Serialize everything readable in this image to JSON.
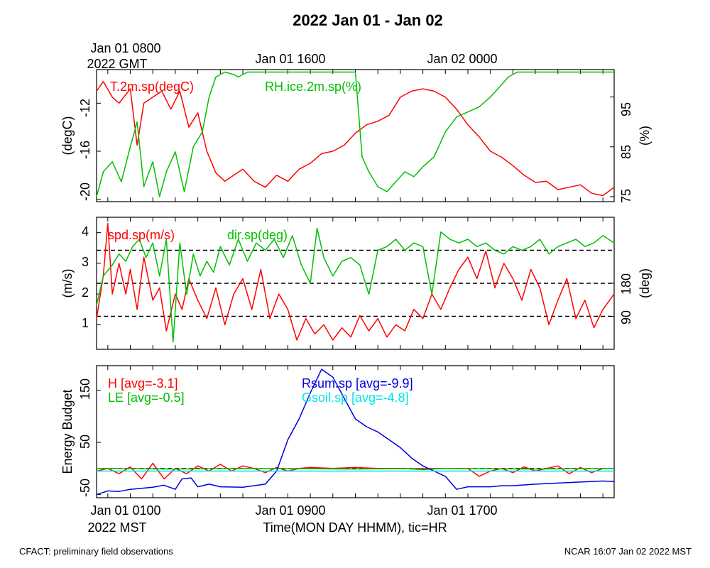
{
  "title": "2022 Jan 01 - Jan 02",
  "top_axis": {
    "first_label_line1": "Jan 01 0800",
    "first_label_line2": "2022 GMT",
    "labels": [
      "Jan 01 1600",
      "Jan 02 0000"
    ]
  },
  "bottom_axis": {
    "labels": [
      "Jan 01 0100",
      "Jan 01 0900",
      "Jan 01 1700"
    ],
    "tz_label": "2022 MST",
    "xlabel": "Time(MON DAY HHMM), tic=HR"
  },
  "footer": {
    "left": "CFACT: preliminary field observations",
    "right": "NCAR 16:07 Jan 02 2022 MST"
  },
  "colors": {
    "red": "#ff0000",
    "green": "#00c000",
    "blue": "#0000e0",
    "cyan": "#00e5e5",
    "black": "#000000"
  },
  "chart_data": [
    {
      "type": "line",
      "x_units": "hours since Jan 01 0000 MST",
      "xlim": [
        0.5,
        23.5
      ],
      "ylabel_left": "(degC)",
      "ylabel_right": "(%)",
      "ylim_left": [
        -20.2,
        -9.2
      ],
      "ylim_right": [
        74,
        100.5
      ],
      "yticks_left": [
        "-20",
        "-16",
        "-12"
      ],
      "yticks_right": [
        "75",
        "85",
        "95"
      ],
      "series": [
        {
          "name": "T.2m.sp(degC)",
          "axis": "left",
          "color": "red",
          "x": [
            0.5,
            0.8,
            1.2,
            1.5,
            2.0,
            2.3,
            2.6,
            3.0,
            3.4,
            3.8,
            4.2,
            4.6,
            5.0,
            5.4,
            5.8,
            6.2,
            6.6,
            7.0,
            7.5,
            8.0,
            8.5,
            9.0,
            9.5,
            10.0,
            10.5,
            11.0,
            11.5,
            12.0,
            12.5,
            13.0,
            13.5,
            14.0,
            14.5,
            15.0,
            15.5,
            16.0,
            16.5,
            17.0,
            17.5,
            18.0,
            18.5,
            19.0,
            19.5,
            20.0,
            20.5,
            21.0,
            21.5,
            22.0,
            22.5,
            23.0,
            23.5
          ],
          "y": [
            -11.0,
            -10.2,
            -11.5,
            -12.0,
            -10.8,
            -15.5,
            -12.0,
            -11.5,
            -11.0,
            -12.5,
            -11.0,
            -14.0,
            -12.8,
            -16.0,
            -17.8,
            -18.5,
            -18.0,
            -17.5,
            -18.5,
            -19.0,
            -18.0,
            -18.5,
            -17.5,
            -17.0,
            -16.2,
            -16.0,
            -15.5,
            -14.5,
            -13.8,
            -13.5,
            -13.0,
            -11.5,
            -11.0,
            -10.8,
            -11.0,
            -11.5,
            -12.5,
            -13.8,
            -14.8,
            -16.0,
            -16.5,
            -17.2,
            -18.0,
            -18.6,
            -18.5,
            -19.2,
            -19.0,
            -18.8,
            -19.5,
            -19.7,
            -19.0
          ]
        },
        {
          "name": "RH.ice.2m.sp(%)",
          "axis": "right",
          "color": "green",
          "x": [
            0.5,
            0.8,
            1.2,
            1.6,
            2.0,
            2.3,
            2.6,
            3.0,
            3.3,
            3.6,
            4.0,
            4.4,
            4.8,
            5.2,
            5.5,
            5.8,
            6.2,
            6.6,
            6.8,
            7.2,
            7.5,
            7.8,
            8.2,
            8.5,
            9.0,
            9.5,
            10.0,
            10.5,
            11.0,
            11.5,
            12.0,
            12.3,
            12.6,
            13.0,
            13.4,
            13.8,
            14.2,
            14.6,
            15.0,
            15.5,
            16.0,
            16.5,
            17.0,
            17.5,
            18.0,
            18.4,
            18.8,
            19.2,
            19.6,
            20.0,
            20.5,
            21.0,
            21.5,
            22.0,
            22.5,
            23.0,
            23.5
          ],
          "y": [
            75.0,
            80.0,
            82.0,
            78.0,
            85.0,
            90.0,
            77.0,
            82.0,
            75.0,
            80.0,
            84.0,
            76.0,
            85.0,
            88.0,
            95.0,
            99.0,
            100.0,
            99.5,
            99.0,
            100.0,
            100.0,
            100.0,
            100.0,
            100.0,
            100.0,
            100.0,
            100.0,
            100.0,
            100.0,
            100.0,
            100.0,
            83.0,
            80.0,
            77.0,
            76.0,
            78.0,
            80.0,
            79.0,
            81.0,
            83.0,
            88.0,
            91.0,
            92.0,
            93.0,
            95.0,
            97.0,
            99.0,
            100.0,
            100.0,
            100.0,
            100.0,
            100.0,
            100.0,
            100.0,
            100.0,
            100.0,
            100.0
          ]
        }
      ]
    },
    {
      "type": "line",
      "x_units": "hours since Jan 01 0000 MST",
      "xlim": [
        0.5,
        23.5
      ],
      "ylabel_left": "(m/s)",
      "ylabel_right": "(deg)",
      "ylim_left": [
        0.2,
        4.5
      ],
      "ylim_right": [
        0,
        360
      ],
      "yticks_left": [
        "1",
        "2",
        "3",
        "4"
      ],
      "yticks_right": [
        "90",
        "180"
      ],
      "reference_lines_right": [
        90,
        180,
        270
      ],
      "series": [
        {
          "name": "spd.sp(m/s)",
          "axis": "left",
          "color": "red",
          "x": [
            0.5,
            0.8,
            1.0,
            1.2,
            1.5,
            1.8,
            2.0,
            2.3,
            2.6,
            3.0,
            3.3,
            3.6,
            4.0,
            4.3,
            4.6,
            5.0,
            5.4,
            5.8,
            6.2,
            6.6,
            7.0,
            7.4,
            7.8,
            8.2,
            8.6,
            9.0,
            9.4,
            9.8,
            10.2,
            10.6,
            11.0,
            11.4,
            11.8,
            12.2,
            12.6,
            13.0,
            13.4,
            13.8,
            14.2,
            14.6,
            15.0,
            15.4,
            15.8,
            16.2,
            16.6,
            17.0,
            17.4,
            17.8,
            18.2,
            18.6,
            19.0,
            19.4,
            19.8,
            20.2,
            20.6,
            21.0,
            21.4,
            21.8,
            22.2,
            22.6,
            23.0,
            23.5
          ],
          "y": [
            1.2,
            2.6,
            4.3,
            2.0,
            3.0,
            2.0,
            2.8,
            1.5,
            3.2,
            1.8,
            2.2,
            0.8,
            2.0,
            1.5,
            2.5,
            1.8,
            1.2,
            2.2,
            1.0,
            2.0,
            2.5,
            1.5,
            2.8,
            1.2,
            2.0,
            1.5,
            0.5,
            1.2,
            0.7,
            1.0,
            0.5,
            0.9,
            0.6,
            1.3,
            0.8,
            1.2,
            0.6,
            1.0,
            0.8,
            1.5,
            1.2,
            2.0,
            1.5,
            2.2,
            2.8,
            3.2,
            2.5,
            3.4,
            2.2,
            3.0,
            2.5,
            1.8,
            2.8,
            2.2,
            1.0,
            1.8,
            2.5,
            1.2,
            1.8,
            0.9,
            1.5,
            2.0
          ]
        },
        {
          "name": "dir.sp(deg)",
          "axis": "right",
          "color": "green",
          "x": [
            0.5,
            0.8,
            1.2,
            1.5,
            1.8,
            2.1,
            2.4,
            2.7,
            3.0,
            3.3,
            3.6,
            3.9,
            4.2,
            4.5,
            4.8,
            5.1,
            5.4,
            5.7,
            6.0,
            6.4,
            6.8,
            7.2,
            7.6,
            8.0,
            8.4,
            8.8,
            9.2,
            9.6,
            10.0,
            10.3,
            10.6,
            11.0,
            11.4,
            11.8,
            12.2,
            12.6,
            13.0,
            13.4,
            13.8,
            14.2,
            14.6,
            15.0,
            15.4,
            15.8,
            16.2,
            16.6,
            17.0,
            17.4,
            17.8,
            18.2,
            18.6,
            19.0,
            19.4,
            19.8,
            20.2,
            20.6,
            21.0,
            21.4,
            21.8,
            22.2,
            22.6,
            23.0,
            23.5
          ],
          "y": [
            120.0,
            200.0,
            230.0,
            260.0,
            240.0,
            280.0,
            300.0,
            250.0,
            290.0,
            200.0,
            300.0,
            20.0,
            290.0,
            150.0,
            260.0,
            200.0,
            240.0,
            210.0,
            280.0,
            230.0,
            300.0,
            240.0,
            290.0,
            270.0,
            300.0,
            250.0,
            310.0,
            230.0,
            180.0,
            330.0,
            250.0,
            200.0,
            240.0,
            250.0,
            230.0,
            150.0,
            270.0,
            280.0,
            300.0,
            270.0,
            290.0,
            280.0,
            150.0,
            320.0,
            300.0,
            290.0,
            300.0,
            280.0,
            290.0,
            270.0,
            260.0,
            280.0,
            270.0,
            280.0,
            300.0,
            260.0,
            280.0,
            290.0,
            300.0,
            280.0,
            290.0,
            310.0,
            290.0
          ]
        }
      ]
    },
    {
      "type": "line",
      "x_units": "hours since Jan 01 0000 MST",
      "xlim": [
        0.5,
        23.5
      ],
      "ylabel_left": "Energy Budget",
      "ylim_left": [
        -56,
        197
      ],
      "yticks_left": [
        "-50",
        "50",
        "150"
      ],
      "reference_lines_left": [
        0
      ],
      "series": [
        {
          "name": "H [avg=-3.1]",
          "color": "red",
          "x": [
            0.5,
            1.0,
            1.5,
            2.0,
            2.5,
            3.0,
            3.5,
            4.0,
            4.5,
            5.0,
            5.5,
            6.0,
            6.5,
            7.0,
            7.5,
            8.0,
            8.5,
            9.0,
            9.5,
            10.0,
            11.0,
            12.0,
            13.0,
            14.0,
            15.0,
            16.0,
            17.0,
            17.5,
            18.0,
            18.5,
            19.0,
            19.5,
            20.0,
            20.5,
            21.0,
            21.5,
            22.0,
            22.5,
            23.0,
            23.5
          ],
          "y": [
            -5.0,
            0.0,
            -10.0,
            3.0,
            -20.0,
            10.0,
            -20.0,
            0.0,
            -10.0,
            5.0,
            -5.0,
            8.0,
            -5.0,
            5.0,
            0.0,
            -8.0,
            2.0,
            -5.0,
            0.0,
            2.0,
            0.0,
            2.0,
            0.0,
            0.0,
            -2.0,
            0.0,
            0.0,
            -15.0,
            -5.0,
            0.0,
            -8.0,
            3.0,
            -5.0,
            0.0,
            5.0,
            -10.0,
            2.0,
            -8.0,
            0.0,
            0.0
          ]
        },
        {
          "name": "LE [avg=-0.5]",
          "color": "green",
          "x": [
            0.5,
            4.0,
            8.0,
            12.0,
            16.0,
            20.0,
            23.5
          ],
          "y": [
            0.0,
            -1.0,
            0.0,
            -1.0,
            0.0,
            -1.0,
            0.0
          ]
        },
        {
          "name": "Rsum.sp [avg=-9.9]",
          "color": "blue",
          "x": [
            0.5,
            1.0,
            1.5,
            2.0,
            2.5,
            3.0,
            3.5,
            4.0,
            4.3,
            4.7,
            5.0,
            5.5,
            6.0,
            7.0,
            8.0,
            8.5,
            9.0,
            9.5,
            10.0,
            10.5,
            11.0,
            11.5,
            12.0,
            12.5,
            13.0,
            13.5,
            14.0,
            14.5,
            15.0,
            15.5,
            16.0,
            16.5,
            17.0,
            17.5,
            18.0,
            18.5,
            19.0,
            20.0,
            21.0,
            22.0,
            23.0,
            23.5
          ],
          "y": [
            -50.0,
            -43.0,
            -44.0,
            -40.0,
            -38.0,
            -36.0,
            -32.0,
            -40.0,
            -20.0,
            -18.0,
            -35.0,
            -30.0,
            -35.0,
            -36.0,
            -30.0,
            -5.0,
            55.0,
            95.0,
            145.0,
            190.0,
            175.0,
            135.0,
            95.0,
            80.0,
            70.0,
            55.0,
            40.0,
            20.0,
            5.0,
            -5.0,
            -15.0,
            -40.0,
            -35.0,
            -35.0,
            -35.0,
            -33.0,
            -33.0,
            -30.0,
            -28.0,
            -26.0,
            -24.0,
            -25.0
          ]
        },
        {
          "name": "Gsoil.sp [avg=-4.8]",
          "color": "cyan",
          "x": [
            0.5,
            23.5
          ],
          "y": [
            -5.0,
            -5.0
          ]
        }
      ]
    }
  ]
}
